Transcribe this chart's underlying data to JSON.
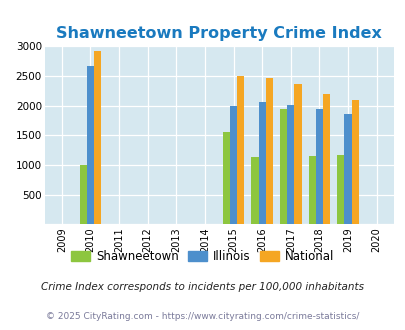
{
  "title": "Shawneetown Property Crime Index",
  "years": [
    2009,
    2010,
    2011,
    2012,
    2013,
    2014,
    2015,
    2016,
    2017,
    2018,
    2019,
    2020
  ],
  "shawneetown": [
    null,
    1000,
    null,
    null,
    null,
    null,
    1560,
    1130,
    1950,
    1150,
    1160,
    null
  ],
  "illinois": [
    null,
    2670,
    null,
    null,
    null,
    null,
    2000,
    2060,
    2010,
    1950,
    1860,
    null
  ],
  "national": [
    null,
    2920,
    null,
    null,
    null,
    null,
    2500,
    2470,
    2360,
    2190,
    2100,
    null
  ],
  "color_shawneetown": "#8dc63f",
  "color_illinois": "#4d8fcc",
  "color_national": "#f5a623",
  "bg_color": "#d6e8f0",
  "ylim": [
    0,
    3000
  ],
  "yticks": [
    0,
    500,
    1000,
    1500,
    2000,
    2500,
    3000
  ],
  "legend_labels": [
    "Shawneetown",
    "Illinois",
    "National"
  ],
  "footnote1": "Crime Index corresponds to incidents per 100,000 inhabitants",
  "footnote2": "© 2025 CityRating.com - https://www.cityrating.com/crime-statistics/",
  "bar_width": 0.25,
  "title_color": "#1a7abf",
  "title_fontsize": 11.5,
  "xlim": [
    2008.4,
    2020.6
  ]
}
